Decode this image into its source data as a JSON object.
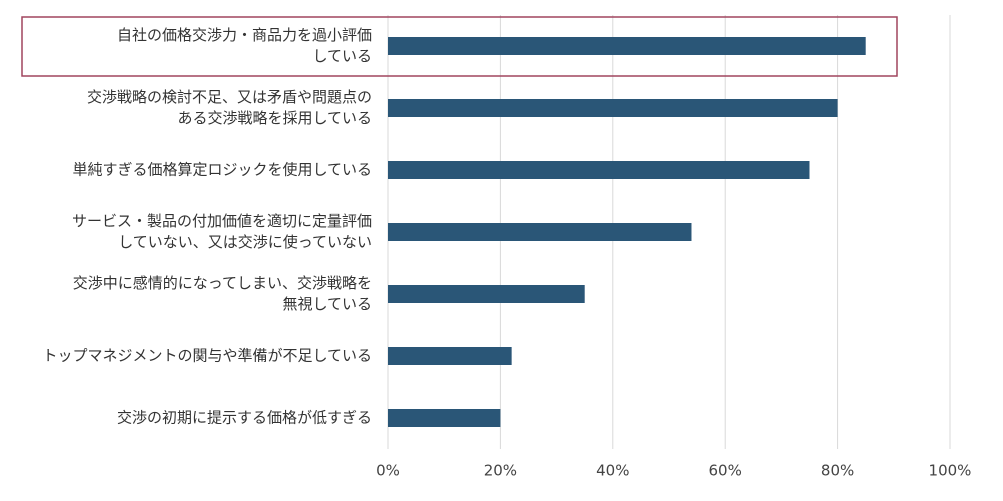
{
  "chart_data": {
    "type": "barh",
    "categories": [
      "自社の価格交渉力・商品力を過小評価\nしている",
      "交渉戦略の検討不足、又は矛盾や問題点の\nある交渉戦略を採用している",
      "単純すぎる価格算定ロジックを使用している",
      "サービス・製品の付加価値を適切に定量評価\nしていない、又は交渉に使っていない",
      "交渉中に感情的になってしまい、交渉戦略を\n無視している",
      "トップマネジメントの関与や準備が不足している",
      "交渉の初期に提示する価格が低すぎる"
    ],
    "values": [
      85,
      80,
      75,
      54,
      35,
      22,
      20
    ],
    "color": "#2a5677",
    "xlim": [
      0,
      100
    ],
    "xticks": [
      {
        "value": 0,
        "label": "0%"
      },
      {
        "value": 20,
        "label": "20%"
      },
      {
        "value": 40,
        "label": "40%"
      },
      {
        "value": 60,
        "label": "60%"
      },
      {
        "value": 80,
        "label": "80%"
      },
      {
        "value": 100,
        "label": "100%"
      }
    ],
    "grid": true,
    "highlight": {
      "index": 0,
      "color": "#a0455e"
    }
  }
}
